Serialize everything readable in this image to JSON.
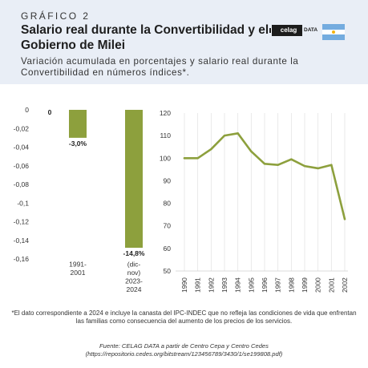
{
  "header": {
    "kicker": "GRÁFICO 2",
    "title": "Salario real durante la Convertibilidad y el Gobierno de Milei",
    "subtitle": "Variación acumulada en porcentajes y salario real durante la Convertibilidad en números índices*.",
    "logo_text": "celag",
    "logo_suffix": "DATA"
  },
  "colors": {
    "bar": "#8da03d",
    "line": "#8da03d",
    "header_bg": "#e9eef6",
    "flag_blue": "#74acdf",
    "flag_sun": "#f6b40e"
  },
  "icons": {
    "flag": "argentina-flag-icon",
    "logo": "celag-data-logo"
  },
  "chart_data": [
    {
      "type": "bar",
      "categories": [
        [
          "",
          "1991-",
          "2001"
        ],
        [
          "",
          "(dic-",
          "nov)",
          "2023-",
          "2024"
        ]
      ],
      "values": [
        -3.0,
        -14.8
      ],
      "extra_labels": [
        "0"
      ],
      "data_labels": [
        "-3,0%",
        "-14,8%"
      ],
      "yticks": [
        "0",
        "-0,02",
        "-0,04",
        "-0,06",
        "-0,08",
        "-0,1",
        "-0,12",
        "-0,14",
        "-0,16"
      ],
      "ylim": [
        -16,
        0
      ],
      "xlabel": "",
      "ylabel": ""
    },
    {
      "type": "line",
      "x": [
        "1990",
        "1991",
        "1992",
        "1993",
        "1994",
        "1995",
        "1996",
        "1997",
        "1998",
        "1999",
        "2000",
        "2001",
        "2002"
      ],
      "values": [
        100,
        100,
        104,
        110,
        111,
        103,
        97.5,
        97,
        99.5,
        96.5,
        95.5,
        97,
        73
      ],
      "yticks": [
        "50",
        "60",
        "70",
        "80",
        "90",
        "100",
        "110",
        "120"
      ],
      "ylim": [
        50,
        120
      ],
      "grid": "vertical",
      "xlabel": "",
      "ylabel": ""
    }
  ],
  "footer": {
    "note": "*El dato correspondiente a 2024 e incluye la canasta del IPC-INDEC que no refleja las condiciones de vida que enfrentan las familias como consecuencia del aumento de los precios de los servicios.",
    "source": "Fuente: CELAG DATA a partir de Centro Cepa y Centro Cedes",
    "source_url": "(https://repositorio.cedes.org/bitstream/123456789/3430/1/se199808.pdf)"
  }
}
